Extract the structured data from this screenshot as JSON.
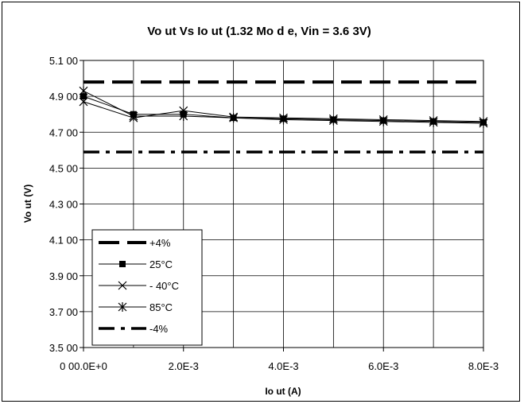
{
  "chart_data": {
    "type": "line",
    "title": "Vo ut Vs Io ut (1.32 Mo d e, Vin = 3.6 3V)",
    "xlabel": "Io ut (A)",
    "ylabel": "Vo ut (V)",
    "xlim": [
      0,
      0.008
    ],
    "ylim": [
      3.5,
      5.1
    ],
    "x_tick_values": [
      0,
      0.002,
      0.004,
      0.006,
      0.008
    ],
    "x_tick_labels": [
      "0 00.0E+0",
      "2.0E-3",
      "4.0E-3",
      "6.0E-3",
      "8.0E-3"
    ],
    "y_tick_values": [
      3.5,
      3.7,
      3.9,
      4.1,
      4.3,
      4.5,
      4.7,
      4.9,
      5.1
    ],
    "y_tick_labels": [
      "3.5 00",
      "3.7 00",
      "3.9 00",
      "4.1 00",
      "4.3 00",
      "4.5 00",
      "4.7 00",
      "4.9 00",
      "5.1 00"
    ],
    "x_minor_grid_step": 0.001,
    "grid": true,
    "legend_position": "bottom-left",
    "series": [
      {
        "name": "+4%",
        "style": "dash",
        "marker": "none",
        "x": [
          0,
          0.008
        ],
        "y": [
          4.98,
          4.98
        ]
      },
      {
        "name": "25°C",
        "style": "solid",
        "marker": "square",
        "x": [
          0,
          0.001,
          0.002,
          0.003,
          0.004,
          0.005,
          0.006,
          0.007,
          0.008
        ],
        "y": [
          4.9,
          4.8,
          4.8,
          4.78,
          4.775,
          4.77,
          4.765,
          4.76,
          4.755
        ]
      },
      {
        "name": "- 40°C",
        "style": "solid",
        "marker": "x",
        "x": [
          0,
          0.001,
          0.002,
          0.003,
          0.004,
          0.005,
          0.006,
          0.007,
          0.008
        ],
        "y": [
          4.87,
          4.78,
          4.82,
          4.785,
          4.78,
          4.775,
          4.77,
          4.765,
          4.76
        ]
      },
      {
        "name": "85°C",
        "style": "solid",
        "marker": "star",
        "x": [
          0,
          0.001,
          0.002,
          0.003,
          0.004,
          0.005,
          0.006,
          0.007,
          0.008
        ],
        "y": [
          4.93,
          4.79,
          4.79,
          4.78,
          4.77,
          4.765,
          4.76,
          4.755,
          4.75
        ]
      },
      {
        "name": "-4%",
        "style": "dashdot",
        "marker": "none",
        "x": [
          0,
          0.008
        ],
        "y": [
          4.59,
          4.59
        ]
      }
    ]
  }
}
